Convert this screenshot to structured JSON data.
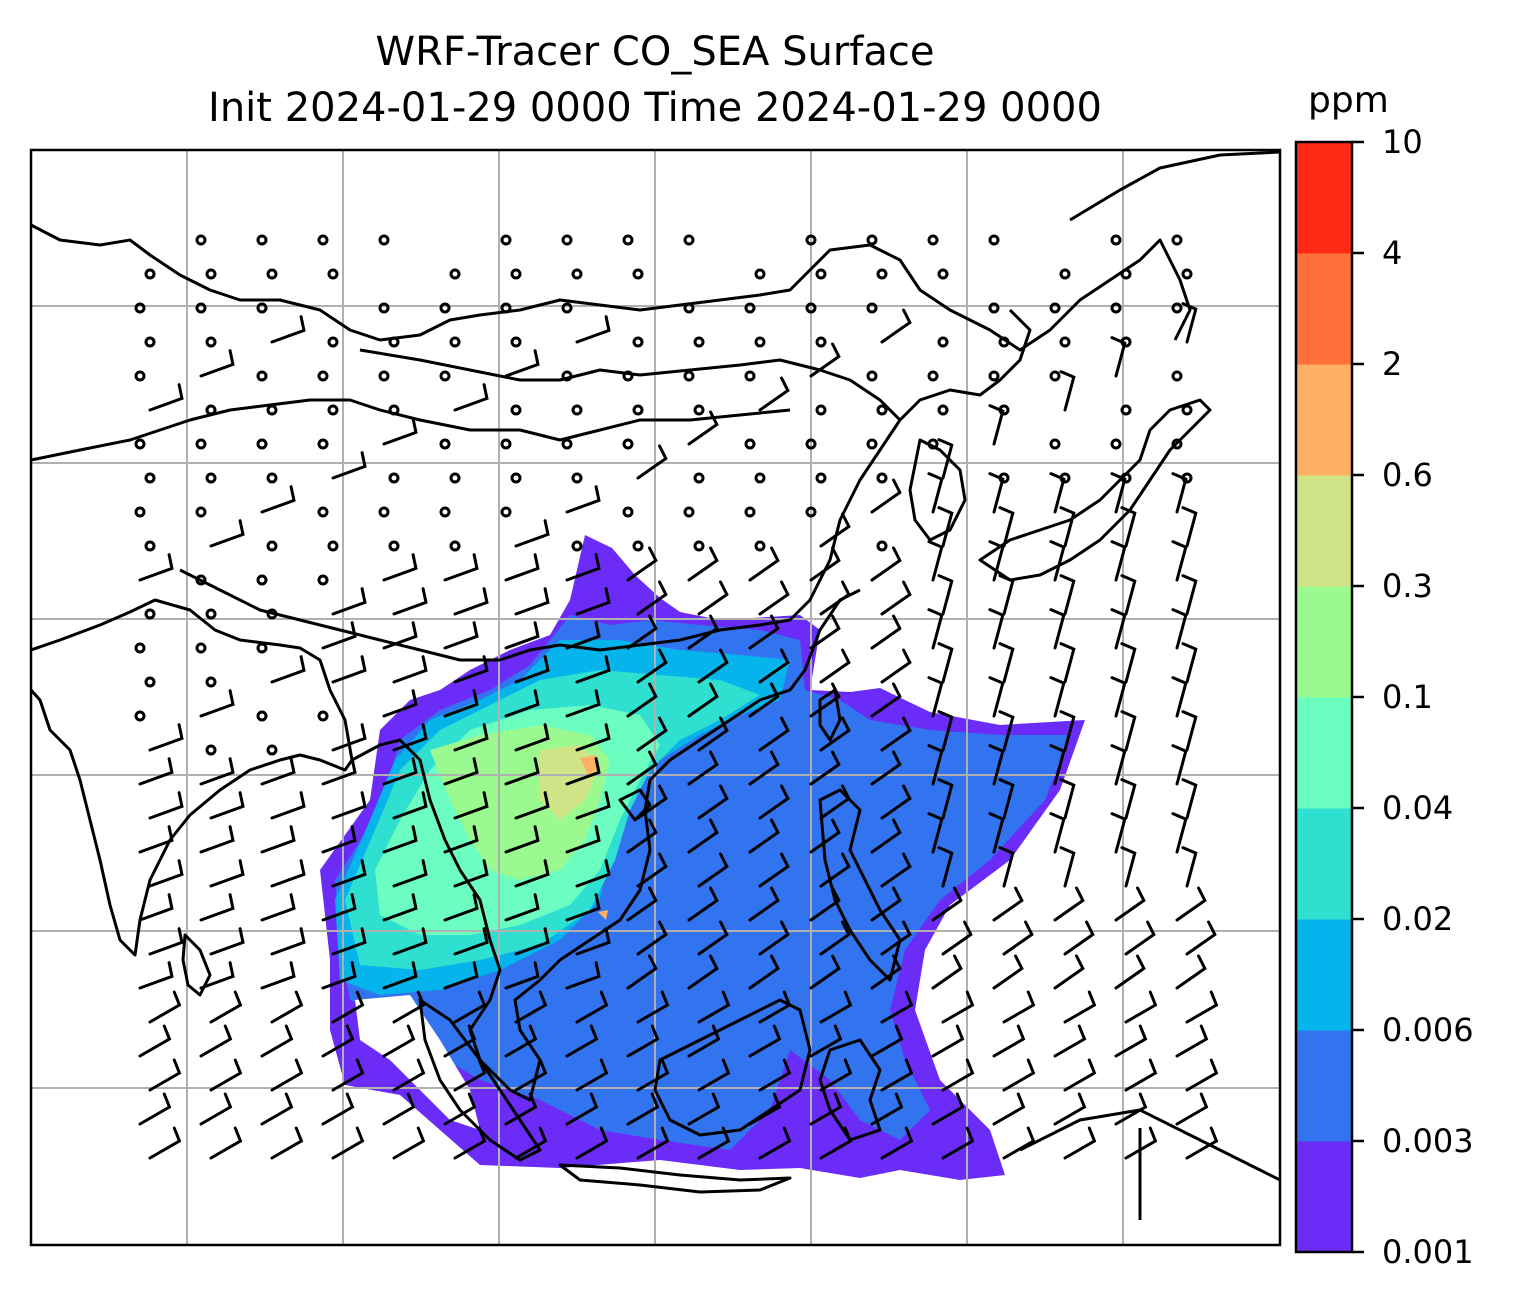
{
  "title": {
    "line1": "WRF-Tracer CO_SEA Surface",
    "line2": "Init 2024-01-29 0000 Time 2024-01-29 0000"
  },
  "colorbar": {
    "unit": "ppm",
    "ticks": [
      "0.001",
      "0.003",
      "0.006",
      "0.02",
      "0.04",
      "0.1",
      "0.3",
      "0.6",
      "2",
      "4",
      "10"
    ],
    "colors": [
      "#6a2cf6",
      "#3273f0",
      "#05b4ea",
      "#2fdfcf",
      "#6cfec0",
      "#9af98f",
      "#d0e387",
      "#ffb062",
      "#ff713a",
      "#ff2a15"
    ]
  },
  "map": {
    "gridlines": true,
    "coastline_color": "#000000",
    "grid_color": "#b0b0b0",
    "wind_symbol": "barbs"
  }
}
